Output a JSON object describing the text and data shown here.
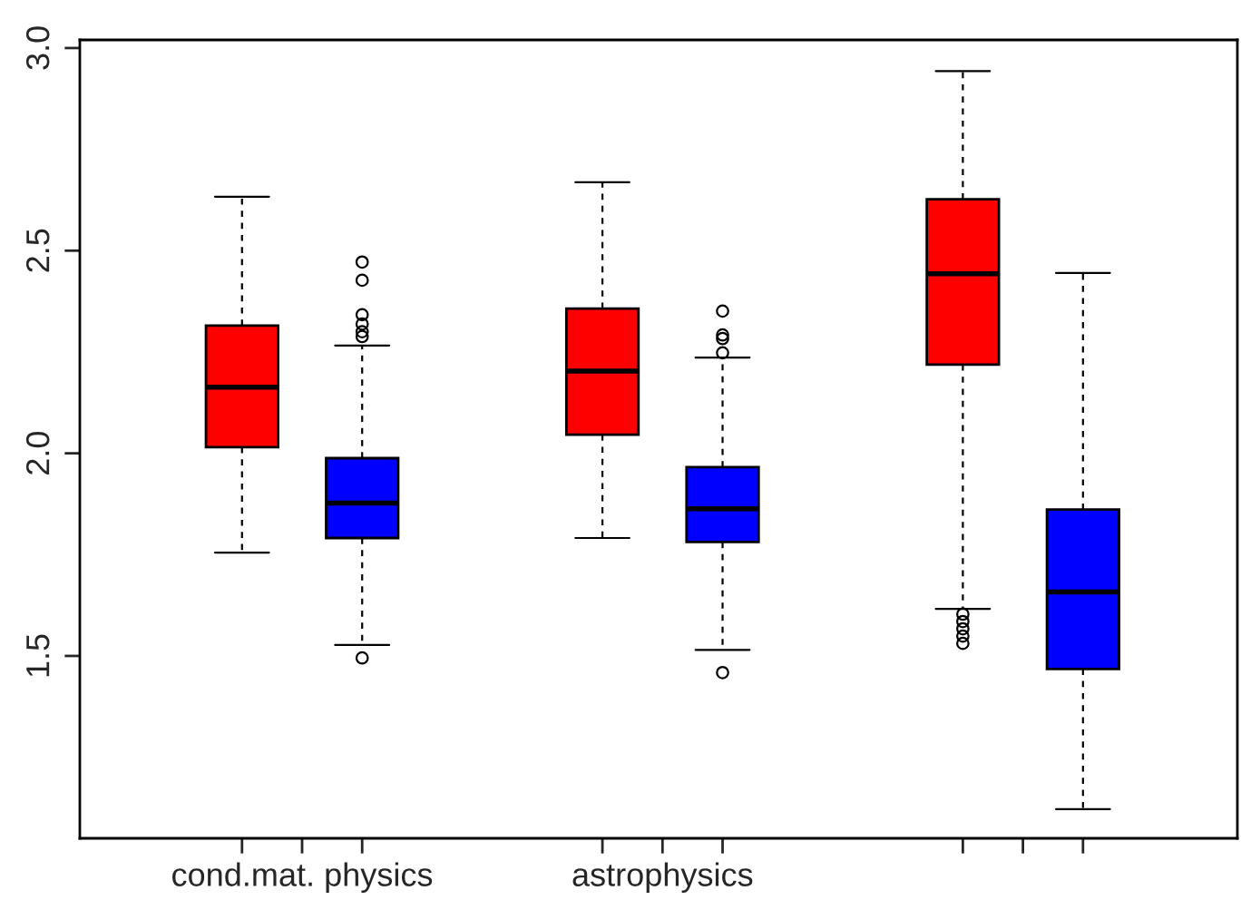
{
  "chart_data": {
    "type": "box",
    "categories": [
      "cond.mat. physics",
      "astrophysics",
      null
    ],
    "series": [
      {
        "color": "#ff0000",
        "boxes": [
          {
            "low": 1.755,
            "q1": 2.015,
            "median": 2.163,
            "q3": 2.315,
            "high": 2.633
          },
          {
            "low": 1.791,
            "q1": 2.046,
            "median": 2.203,
            "q3": 2.357,
            "high": 2.669
          },
          {
            "low": 1.616,
            "q1": 2.219,
            "median": 2.443,
            "q3": 2.627,
            "high": 2.943,
            "outliers": [
              1.603,
              1.585,
              1.567,
              1.549,
              1.531
            ]
          }
        ]
      },
      {
        "color": "#0000ff",
        "boxes": [
          {
            "low": 1.527,
            "q1": 1.791,
            "median": 1.877,
            "q3": 1.988,
            "high": 2.266,
            "outliers": [
              2.472,
              2.427,
              2.342,
              2.319,
              2.3,
              2.288,
              1.495
            ]
          },
          {
            "low": 1.515,
            "q1": 1.781,
            "median": 1.863,
            "q3": 1.966,
            "high": 2.236,
            "outliers": [
              2.351,
              2.292,
              2.283,
              2.248,
              1.459
            ]
          },
          {
            "low": 1.122,
            "q1": 1.468,
            "median": 1.658,
            "q3": 1.861,
            "high": 2.445
          }
        ]
      }
    ],
    "ylim": [
      1.05,
      3.02
    ],
    "yticks": [
      1.5,
      {
        "value": 2,
        "label": "2.0"
      },
      2.5,
      {
        "value": 3,
        "label": "3.0"
      }
    ],
    "grid": false
  }
}
